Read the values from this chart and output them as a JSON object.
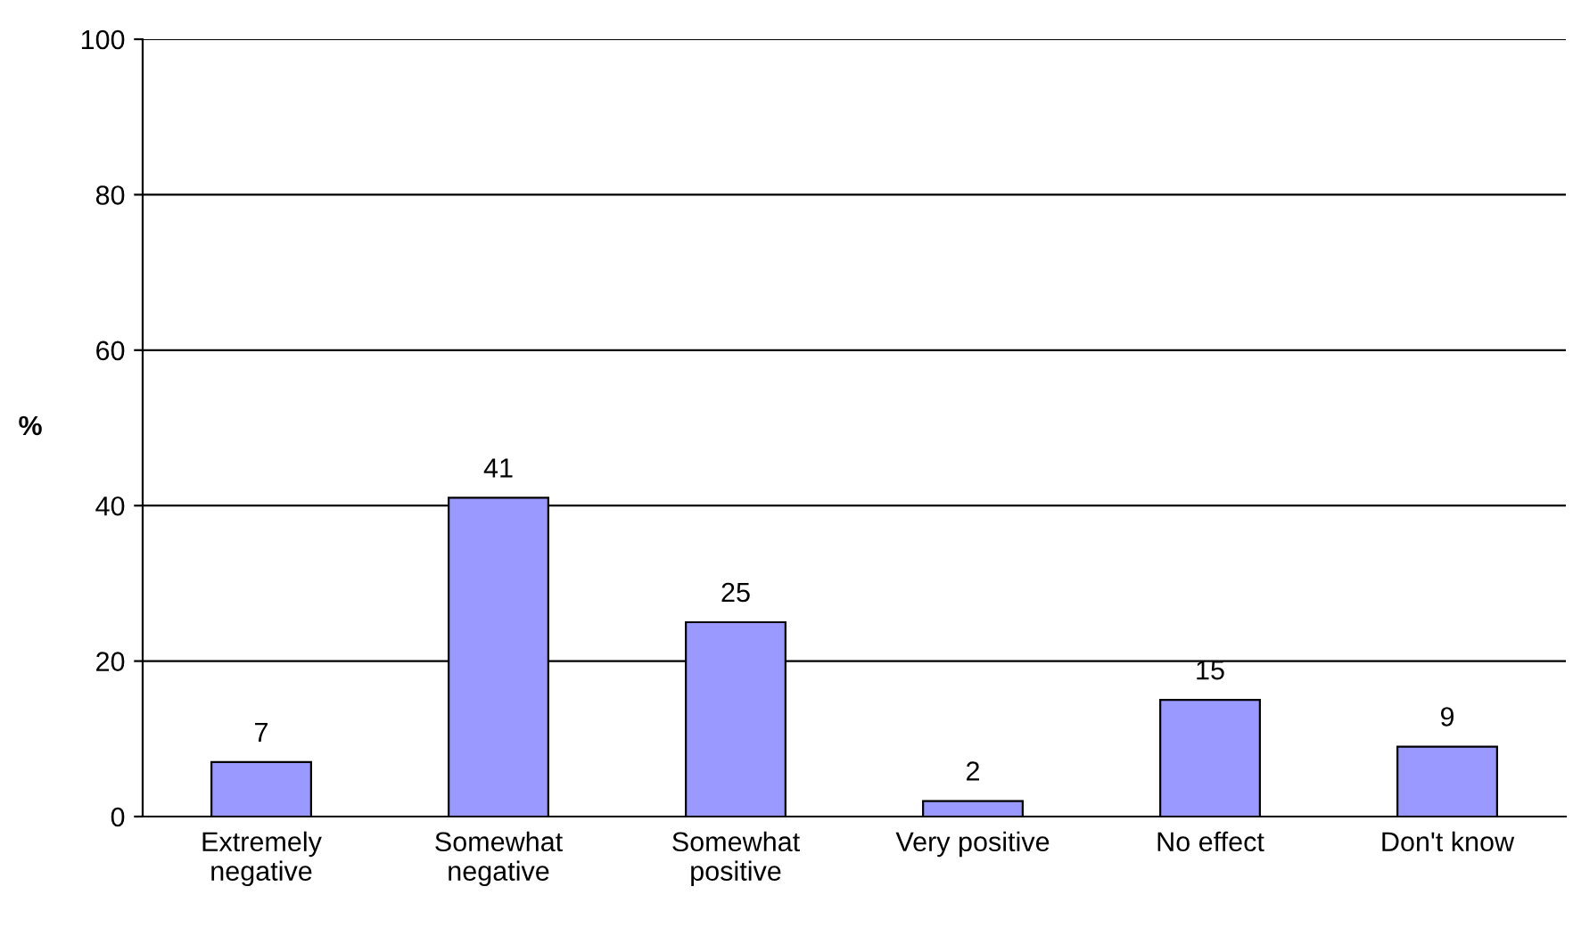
{
  "chart_data": {
    "type": "bar",
    "ylabel": "%",
    "categories": [
      "Extremely\nnegative",
      "Somewhat\nnegative",
      "Somewhat\npositive",
      "Very positive",
      "No effect",
      "Don't know"
    ],
    "values": [
      7,
      41,
      25,
      2,
      15,
      9
    ],
    "color": "#9999ff",
    "ylim": [
      0,
      100
    ],
    "yticks": [
      0,
      20,
      40,
      60,
      80,
      100
    ],
    "grid": "y",
    "data_labels": true
  }
}
